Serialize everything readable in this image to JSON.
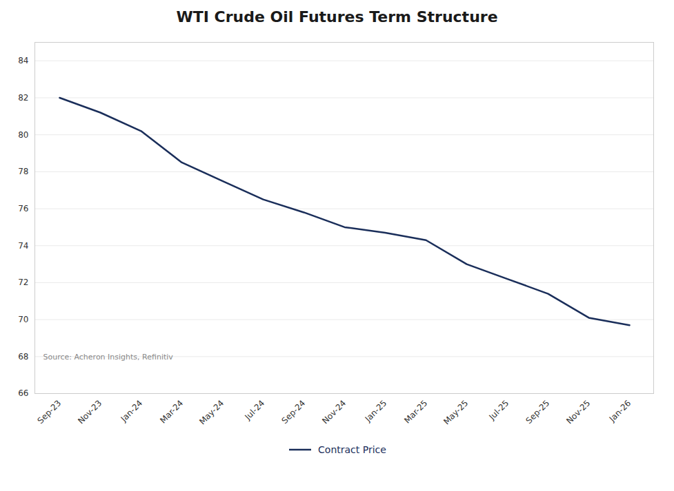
{
  "chart_data": {
    "type": "line",
    "title": "WTI Crude Oil Futures Term Structure",
    "categories": [
      "Sep-23",
      "Nov-23",
      "Jan-24",
      "Mar-24",
      "May-24",
      "Jul-24",
      "Sep-24",
      "Nov-24",
      "Jan-25",
      "Mar-25",
      "May-25",
      "Jul-25",
      "Sep-25",
      "Nov-25",
      "Jan-26"
    ],
    "series": [
      {
        "name": "Contract Price",
        "color": "#1a2e5a",
        "values": [
          82.0,
          81.2,
          80.2,
          78.5,
          77.5,
          76.5,
          75.8,
          75.0,
          74.7,
          74.3,
          73.0,
          72.2,
          71.4,
          70.1,
          69.7
        ]
      }
    ],
    "ylim": [
      66,
      85
    ],
    "yticks": [
      66,
      68,
      70,
      72,
      74,
      76,
      78,
      80,
      82,
      84
    ],
    "grid": true,
    "legend": "bottom",
    "annotations": [
      "Source: Acheron Insights, Refinitiv"
    ]
  }
}
